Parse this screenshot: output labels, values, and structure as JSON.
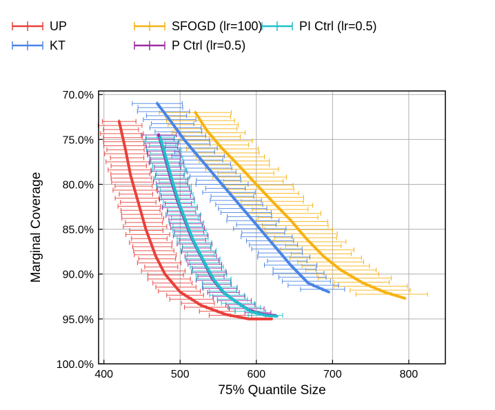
{
  "chart_data": {
    "type": "line",
    "title": "",
    "xlabel": "75% Quantile Size",
    "ylabel": "Marginal Coverage",
    "xlim": [
      393,
      848
    ],
    "ylim": [
      100,
      69.6
    ],
    "y_inverted": true,
    "xticks": [
      400,
      500,
      600,
      700,
      800
    ],
    "xtick_labels": [
      "400",
      "500",
      "600",
      "700",
      "800"
    ],
    "yticks": [
      70,
      75,
      80,
      85,
      90,
      95,
      100
    ],
    "ytick_labels": [
      "70.0%",
      "75.0%",
      "80.0%",
      "85.0%",
      "90.0%",
      "95.0%",
      "100.0%"
    ],
    "grid": true,
    "legend_position": "top",
    "series": [
      {
        "name": "UP",
        "color": "#e8413b",
        "points": [
          [
            420,
            73
          ],
          [
            428,
            76
          ],
          [
            435,
            79
          ],
          [
            445,
            82
          ],
          [
            455,
            85
          ],
          [
            468,
            88
          ],
          [
            480,
            90
          ],
          [
            500,
            92
          ],
          [
            528,
            93.5
          ],
          [
            560,
            94.5
          ],
          [
            590,
            95
          ],
          [
            620,
            95
          ]
        ],
        "xerr": 25
      },
      {
        "name": "KT",
        "color": "#4a84e6",
        "points": [
          [
            470,
            71
          ],
          [
            488,
            73
          ],
          [
            505,
            75
          ],
          [
            525,
            77
          ],
          [
            545,
            79
          ],
          [
            565,
            81
          ],
          [
            585,
            83
          ],
          [
            605,
            85
          ],
          [
            625,
            87
          ],
          [
            645,
            89
          ],
          [
            668,
            91
          ],
          [
            695,
            92
          ]
        ],
        "xerr": 30
      },
      {
        "name": "SFOGD (lr=100)",
        "color": "#f7b213",
        "points": [
          [
            520,
            72
          ],
          [
            535,
            74
          ],
          [
            555,
            76
          ],
          [
            578,
            78
          ],
          [
            600,
            80
          ],
          [
            622,
            82
          ],
          [
            645,
            84
          ],
          [
            665,
            86
          ],
          [
            688,
            88
          ],
          [
            710,
            89.5
          ],
          [
            740,
            91
          ],
          [
            768,
            92
          ],
          [
            795,
            92.7
          ]
        ],
        "xerr": 42
      },
      {
        "name": "P Ctrl (lr=0.5)",
        "color": "#9b2ca0",
        "points": [
          [
            472,
            74.5
          ],
          [
            480,
            77
          ],
          [
            488,
            79.5
          ],
          [
            497,
            82
          ],
          [
            506,
            84
          ],
          [
            515,
            86
          ],
          [
            524,
            87.5
          ],
          [
            533,
            89
          ],
          [
            542,
            90.5
          ],
          [
            556,
            92
          ],
          [
            572,
            93
          ],
          [
            590,
            94
          ],
          [
            610,
            94.5
          ],
          [
            625,
            94.6
          ]
        ],
        "xerr": 20
      },
      {
        "name": "PI Ctrl (lr=0.5)",
        "color": "#1fbfcc",
        "points": [
          [
            474,
            74.8
          ],
          [
            482,
            77.2
          ],
          [
            490,
            79.7
          ],
          [
            499,
            82.2
          ],
          [
            508,
            84.2
          ],
          [
            517,
            86.2
          ],
          [
            526,
            87.7
          ],
          [
            535,
            89.2
          ],
          [
            545,
            90.7
          ],
          [
            559,
            92.2
          ],
          [
            575,
            93.2
          ],
          [
            593,
            94.2
          ],
          [
            612,
            94.6
          ],
          [
            627,
            94.7
          ]
        ],
        "xerr": 20
      }
    ]
  }
}
